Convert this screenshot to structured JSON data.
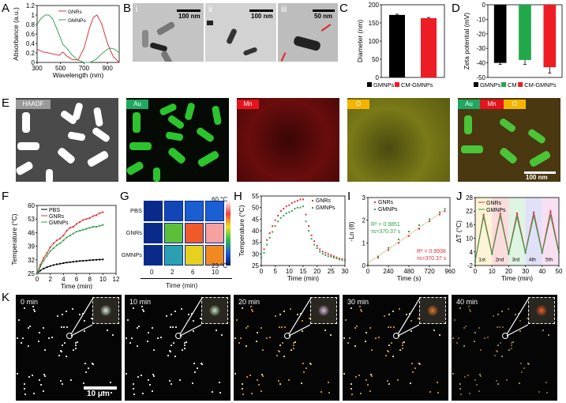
{
  "panels": {
    "A": {
      "letter": "A",
      "chart_data": {
        "type": "line",
        "title": "",
        "xlabel": "Wavelength (nm)",
        "ylabel": "Absorbance (a.u.)",
        "xlim": [
          300,
          1000
        ],
        "ylim": [
          0,
          1.2
        ],
        "xticks": [
          "300",
          "500",
          "700",
          "900"
        ],
        "yticks": [
          "0",
          "0.2",
          "0.4",
          "0.6",
          "0.8",
          "1",
          "1.2"
        ],
        "legend": [
          "GNRs",
          "GMNPs"
        ],
        "series": [
          {
            "name": "GNRs",
            "color": "#d9363e",
            "x": [
              300,
              350,
              400,
              450,
              490,
              520,
              550,
              600,
              650,
              700,
              750,
              780,
              810,
              850,
              900,
              950,
              1000
            ],
            "y": [
              0.28,
              0.22,
              0.2,
              0.17,
              0.15,
              0.22,
              0.14,
              0.06,
              0.05,
              0.3,
              0.75,
              0.95,
              1.0,
              0.82,
              0.4,
              0.12,
              0.0
            ]
          },
          {
            "name": "GMNPs",
            "color": "#3aa556",
            "x": [
              300,
              330,
              370,
              400,
              430,
              470,
              520,
              560,
              600,
              650,
              700,
              750,
              800,
              850,
              900,
              930,
              960,
              1000
            ],
            "y": [
              0.8,
              0.92,
              1.0,
              1.0,
              0.93,
              0.7,
              0.38,
              0.28,
              0.15,
              0.05,
              0.0,
              0.0,
              0.06,
              0.18,
              0.28,
              0.3,
              0.28,
              0.2
            ]
          }
        ]
      }
    },
    "B": {
      "letter": "B",
      "images": [
        {
          "roman": "i",
          "scale": "100 nm"
        },
        {
          "roman": "ii",
          "scale": "100 nm"
        },
        {
          "roman": "iii",
          "scale": "50 nm"
        }
      ]
    },
    "C": {
      "letter": "C",
      "chart_data": {
        "type": "bar",
        "ylabel": "Diameter (nm)",
        "ylim": [
          0,
          200
        ],
        "yticks": [
          "0",
          "50",
          "100",
          "150",
          "200"
        ],
        "categories": [
          "GMNPs",
          "CM-GMNPs"
        ],
        "values": [
          172,
          163
        ],
        "errors": [
          2,
          2
        ],
        "colors": [
          "#000000",
          "#ee1c25"
        ],
        "legend": [
          "GMNPs",
          "CM-GMNPs"
        ]
      }
    },
    "D": {
      "letter": "D",
      "chart_data": {
        "type": "bar",
        "ylabel": "Zeta potential (mV)",
        "ylim": [
          -50,
          0
        ],
        "yticks": [
          "0",
          "-10",
          "-20",
          "-30",
          "-40",
          "-50"
        ],
        "categories": [
          "GMNPs",
          "CM",
          "CM-GMNPs"
        ],
        "values": [
          -40,
          -38,
          -43
        ],
        "errors": [
          1,
          3,
          4
        ],
        "colors": [
          "#000000",
          "#22a84b",
          "#ee1c25"
        ],
        "legend": [
          "GMNPs",
          "CM",
          "CM-GMNPs"
        ]
      }
    },
    "E": {
      "letter": "E",
      "maps": [
        {
          "tag": "HAADF",
          "tag_color": "#9a9a9a"
        },
        {
          "tag": "Au",
          "tag_color": "#1fa862"
        },
        {
          "tag": "Mn",
          "tag_color": "#e8121d"
        },
        {
          "tag": "O",
          "tag_color": "#f5b400"
        },
        {
          "tags": [
            "Au",
            "Mn",
            "O"
          ],
          "scale": "100 nm"
        }
      ]
    },
    "F": {
      "letter": "F",
      "chart_data": {
        "type": "line",
        "xlabel": "Time (min)",
        "ylabel": "Temperature (°C)",
        "xlim": [
          0,
          12
        ],
        "ylim": [
          25,
          60
        ],
        "xticks": [
          "0",
          "2",
          "4",
          "6",
          "8",
          "10",
          "12"
        ],
        "yticks": [
          "25",
          "32",
          "39",
          "46",
          "53",
          "60"
        ],
        "legend": [
          "PBS",
          "GNRs",
          "GMNPs"
        ],
        "x": [
          0,
          0.5,
          1,
          1.5,
          2,
          2.5,
          3,
          3.5,
          4,
          4.5,
          5,
          5.5,
          6,
          6.5,
          7,
          7.5,
          8,
          8.5,
          9,
          9.5,
          10
        ],
        "series": [
          {
            "name": "PBS",
            "color": "#000000",
            "values": [
              25,
              26.5,
              27.5,
              28.2,
              28.8,
              29.3,
              29.7,
              30.0,
              30.3,
              30.6,
              30.8,
              31.0,
              31.2,
              31.4,
              31.5,
              31.6,
              31.8,
              31.9,
              32.0,
              32.1,
              32.2
            ]
          },
          {
            "name": "GNRs",
            "color": "#e0303a",
            "values": [
              25,
              29.5,
              33,
              35.5,
              38.5,
              40.5,
              42,
              43,
              44.5,
              47,
              48.5,
              49,
              50.5,
              51.5,
              52.5,
              53,
              53.5,
              54.5,
              55,
              56,
              56.5
            ]
          },
          {
            "name": "GMNPs",
            "color": "#2fa34a",
            "values": [
              25,
              28.5,
              31.5,
              34,
              36.5,
              38,
              39.5,
              40.5,
              42,
              43.5,
              44.5,
              45.5,
              46.5,
              47,
              47.5,
              48,
              48.5,
              49,
              49,
              49.5,
              50
            ]
          }
        ]
      }
    },
    "G": {
      "letter": "G",
      "row_labels": [
        "PBS",
        "GNRs",
        "GMNPs"
      ],
      "col_labels": [
        "0",
        "2",
        "6",
        "10"
      ],
      "xlabel": "Time (min)",
      "colorbar_max": "60 °C",
      "colorbar_min": "23 °C",
      "cells": [
        [
          "#0a2a8a",
          "#1246b8",
          "#1a5ed0",
          "#1a60d4"
        ],
        [
          "#0a2a8a",
          "#5cbf3a",
          "#f05a2a",
          "#f7a0a0"
        ],
        [
          "#0a2a8a",
          "#2aa0b0",
          "#e6d020",
          "#f08a20"
        ]
      ]
    },
    "H": {
      "letter": "H",
      "chart_data": {
        "type": "scatter",
        "xlabel": "Time (min)",
        "ylabel": "Temperature (°C)",
        "xlim": [
          0,
          30
        ],
        "ylim": [
          25,
          55
        ],
        "xticks": [
          "0",
          "5",
          "10",
          "15",
          "20",
          "25",
          "30"
        ],
        "yticks": [
          "25",
          "30",
          "35",
          "40",
          "45",
          "50",
          "55"
        ],
        "legend": [
          "GNRs",
          "GMNPs"
        ],
        "x": [
          0,
          1,
          2,
          3,
          4,
          5,
          6,
          7,
          8,
          9,
          10,
          11,
          12,
          13,
          14,
          15,
          16,
          17,
          18,
          19,
          20,
          21,
          22,
          23,
          24,
          25,
          26,
          27,
          28,
          29,
          30
        ],
        "series": [
          {
            "name": "GNRs",
            "color": "#e0303a",
            "values": [
              28.5,
              32,
              36,
              39,
              42,
              44.5,
              46.5,
              48.5,
              49.5,
              50.5,
              51,
              52,
              52.5,
              53,
              53.5,
              53.5,
              47,
              42,
              38,
              35.5,
              33.5,
              32,
              31,
              30.5,
              30,
              29.5,
              29,
              28.5,
              28,
              27.8,
              27.5
            ]
          },
          {
            "name": "GMNPs",
            "color": "#2fa34a",
            "values": [
              28.5,
              30.5,
              34,
              37,
              39.5,
              42,
              44,
              45.5,
              46.5,
              47.5,
              48,
              48.5,
              49.5,
              50,
              50,
              50.5,
              44,
              40,
              36.5,
              34,
              32.5,
              31,
              30,
              29.5,
              29,
              28.8,
              28.4,
              28,
              27.6,
              27.3,
              27
            ]
          }
        ]
      }
    },
    "I": {
      "letter": "I",
      "chart_data": {
        "type": "scatter",
        "xlabel": "Time (s)",
        "ylabel": "-Ln (θ)",
        "xlim": [
          0,
          960
        ],
        "ylim": [
          0,
          3
        ],
        "xticks": [
          "0",
          "240",
          "480",
          "720",
          "960"
        ],
        "yticks": [
          "0",
          "1",
          "2",
          "3"
        ],
        "legend": [
          "GNRs",
          "GMNPs"
        ],
        "annotations": [
          {
            "text1": "R² = 0.9851",
            "text2": "τs=370.37 s",
            "color": "#2fa34a"
          },
          {
            "text1": "R² = 0.9938",
            "text2": "τs=370.37 s",
            "color": "#e0303a"
          }
        ],
        "series": [
          {
            "name": "GNRs",
            "color": "#e0303a",
            "x": [
              0,
              120,
              240,
              360,
              480,
              600,
              720,
              840,
              900
            ],
            "values": [
              0.05,
              0.35,
              0.68,
              1.0,
              1.3,
              1.62,
              1.95,
              2.25,
              2.4
            ]
          },
          {
            "name": "GMNPs",
            "color": "#2fa34a",
            "x": [
              0,
              120,
              240,
              360,
              480,
              600,
              720,
              840,
              900
            ],
            "values": [
              0.05,
              0.4,
              0.78,
              1.15,
              1.5,
              1.78,
              2.05,
              2.35,
              2.5
            ]
          }
        ]
      }
    },
    "J": {
      "letter": "J",
      "chart_data": {
        "type": "line",
        "xlabel": "Time (min)",
        "ylabel": "ΔT (°C)",
        "xlim": [
          0,
          50
        ],
        "ylim": [
          -2,
          28
        ],
        "xticks": [
          "0",
          "10",
          "20",
          "30",
          "40",
          "50"
        ],
        "yticks": [
          "-2",
          "4",
          "10",
          "16",
          "22",
          "28"
        ],
        "legend": [
          "GNRs",
          "GMNPs"
        ],
        "cycle_labels": [
          "1st",
          "2nd",
          "3rd",
          "4th",
          "5th"
        ],
        "cycle_colors": [
          "#fdf3d6",
          "#fbdcdc",
          "#dff3e3",
          "#e0e0f8",
          "#f8e0f2"
        ],
        "series": [
          {
            "name": "GNRs",
            "color": "#e0303a",
            "x": [
              0,
              5,
              10,
              15,
              20,
              25,
              30,
              35,
              40,
              45,
              50
            ],
            "values": [
              0,
              20.5,
              3.5,
              21,
              3.5,
              21,
              4,
              21.5,
              4,
              22,
              4
            ]
          },
          {
            "name": "GMNPs",
            "color": "#2fa34a",
            "x": [
              0,
              5,
              10,
              15,
              20,
              25,
              30,
              35,
              40,
              45,
              50
            ],
            "values": [
              0,
              19.5,
              3,
              20,
              3,
              19.5,
              3.5,
              20,
              3.5,
              20,
              3.5
            ]
          }
        ]
      }
    },
    "K": {
      "letter": "K",
      "frames": [
        {
          "time": "0 min",
          "inset_color": "#d8f0e0"
        },
        {
          "time": "10 min",
          "inset_color": "#c8e8c0"
        },
        {
          "time": "20 min",
          "inset_color": "#d8c0e0"
        },
        {
          "time": "30 min",
          "inset_color": "#e87a30"
        },
        {
          "time": "40 min",
          "inset_color": "#f06020"
        }
      ],
      "scale": "10 μm"
    }
  }
}
